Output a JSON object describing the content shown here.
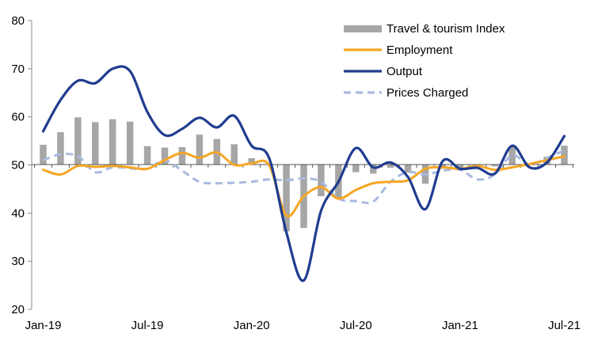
{
  "chart_data": {
    "type": "bar",
    "ylim": [
      20,
      80
    ],
    "ybase": 50,
    "yticks": [
      "20",
      "30",
      "40",
      "50",
      "60",
      "70",
      "80"
    ],
    "x": [
      "Jan-19",
      "Feb-19",
      "Mar-19",
      "Apr-19",
      "May-19",
      "Jun-19",
      "Jul-19",
      "Aug-19",
      "Sep-19",
      "Oct-19",
      "Nov-19",
      "Dec-19",
      "Jan-20",
      "Feb-20",
      "Mar-20",
      "Apr-20",
      "May-20",
      "Jun-20",
      "Jul-20",
      "Aug-20",
      "Sep-20",
      "Oct-20",
      "Nov-20",
      "Dec-20",
      "Jan-21",
      "Feb-21",
      "Mar-21",
      "Apr-21",
      "May-21",
      "Jun-21",
      "Jul-21"
    ],
    "xtick_labels": [
      "Jan-19",
      "Jul-19",
      "Jan-20",
      "Jul-20",
      "Jan-21",
      "Jul-21"
    ],
    "grid": false,
    "legend_position": "top-right",
    "series": [
      {
        "name": "Travel & tourism Index",
        "kind": "bar",
        "color": "#a6a6a6",
        "values": [
          54.2,
          56.8,
          59.9,
          58.9,
          59.5,
          59.0,
          53.9,
          53.6,
          53.7,
          56.3,
          55.4,
          54.3,
          51.4,
          50.2,
          36.2,
          36.9,
          43.5,
          43.0,
          48.5,
          48.2,
          49.4,
          48.4,
          46.1,
          49.2,
          49.4,
          49.6,
          49.7,
          53.8,
          50.3,
          51.7,
          54.0
        ]
      },
      {
        "name": "Employment",
        "kind": "line",
        "color": "#f5a623",
        "values": [
          49.0,
          48.0,
          49.8,
          49.6,
          49.8,
          49.5,
          49.2,
          51.0,
          52.5,
          51.5,
          52.6,
          50.0,
          50.3,
          50.0,
          39.5,
          43.5,
          45.4,
          43.0,
          44.8,
          46.2,
          46.5,
          46.8,
          49.2,
          49.5,
          49.2,
          49.8,
          49.0,
          49.5,
          50.2,
          51.0,
          51.8
        ]
      },
      {
        "name": "Output",
        "kind": "line",
        "color": "#1f3c8f",
        "values": [
          57.0,
          63.5,
          67.5,
          67.0,
          70.0,
          69.5,
          61.0,
          56.2,
          57.5,
          59.8,
          57.8,
          60.2,
          54.0,
          51.5,
          36.0,
          26.0,
          40.5,
          46.5,
          53.5,
          49.5,
          50.5,
          47.5,
          40.8,
          50.8,
          49.2,
          49.4,
          48.2,
          54.0,
          49.5,
          50.5,
          56.0
        ]
      },
      {
        "name": "Prices Charged",
        "kind": "line",
        "dashed": true,
        "color": "#a9badf",
        "values": [
          51.0,
          52.2,
          51.8,
          48.5,
          49.5,
          49.3,
          49.2,
          51.0,
          48.8,
          46.5,
          46.2,
          46.3,
          46.5,
          47.0,
          46.8,
          47.2,
          46.5,
          43.0,
          42.5,
          42.4,
          46.5,
          48.5,
          48.0,
          48.8,
          49.0,
          47.0,
          48.0,
          52.0,
          50.0,
          51.5,
          53.0
        ]
      }
    ]
  }
}
